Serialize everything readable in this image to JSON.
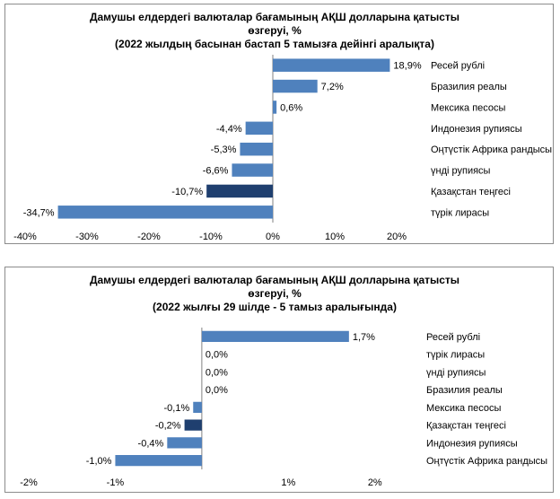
{
  "chart_data": [
    {
      "type": "bar",
      "orientation": "horizontal",
      "title_lines": [
        "Дамушы елдердегі валюталар бағамының АҚШ долларына қатысты",
        "өзгеруі, %",
        "(2022 жылдың басынан бастап 5 тамызға дейінгі аралықта)"
      ],
      "categories": [
        "Ресей рублі",
        "Бразилия реалы",
        "Мексика песосы",
        "Индонезия рупиясы",
        "Оңтүстік Африка рандысы",
        "үнді рупиясы",
        "Қазақстан теңгесі",
        "түрік лирасы"
      ],
      "values": [
        18.9,
        7.2,
        0.6,
        -4.4,
        -5.3,
        -6.6,
        -10.7,
        -34.7
      ],
      "value_labels": [
        "18,9%",
        "7,2%",
        "0,6%",
        "-4,4%",
        "-5,3%",
        "-6,6%",
        "-10,7%",
        "-34,7%"
      ],
      "highlight_index": 6,
      "xlim": [
        -40,
        20
      ],
      "xticks": [
        -40,
        -30,
        -20,
        -10,
        0,
        10,
        20
      ],
      "xtick_labels": [
        "-40%",
        "-30%",
        "-20%",
        "-10%",
        "0%",
        "10%",
        "20%"
      ],
      "grid": false,
      "legend": "none",
      "colors": {
        "bar": "#4f81bd",
        "highlight": "#1f3f6f",
        "axis": "#808080"
      }
    },
    {
      "type": "bar",
      "orientation": "horizontal",
      "title_lines": [
        "Дамушы елдердегі валюталар бағамының АҚШ долларына қатысты",
        "өзгеруі, %",
        "(2022 жылғы 29 шілде - 5 тамыз аралығында)"
      ],
      "categories": [
        "Ресей рублі",
        "түрік лирасы",
        "үнді рупиясы",
        "Бразилия реалы",
        "Мексика песосы",
        "Қазақстан теңгесі",
        "Индонезия рупиясы",
        "Оңтүстік Африка рандысы"
      ],
      "values": [
        1.7,
        0.0,
        0.0,
        0.0,
        -0.1,
        -0.2,
        -0.4,
        -1.0
      ],
      "value_labels": [
        "1,7%",
        "0,0%",
        "0,0%",
        "0,0%",
        "-0,1%",
        "-0,2%",
        "-0,4%",
        "-1,0%"
      ],
      "highlight_index": 5,
      "xlim": [
        -2,
        2.5
      ],
      "xticks": [
        -2,
        -1,
        1,
        2
      ],
      "xtick_labels": [
        "-2%",
        "-1%",
        "1%",
        "2%"
      ],
      "grid": false,
      "legend": "none",
      "colors": {
        "bar": "#4f81bd",
        "highlight": "#1f3f6f",
        "axis": "#808080"
      }
    }
  ]
}
